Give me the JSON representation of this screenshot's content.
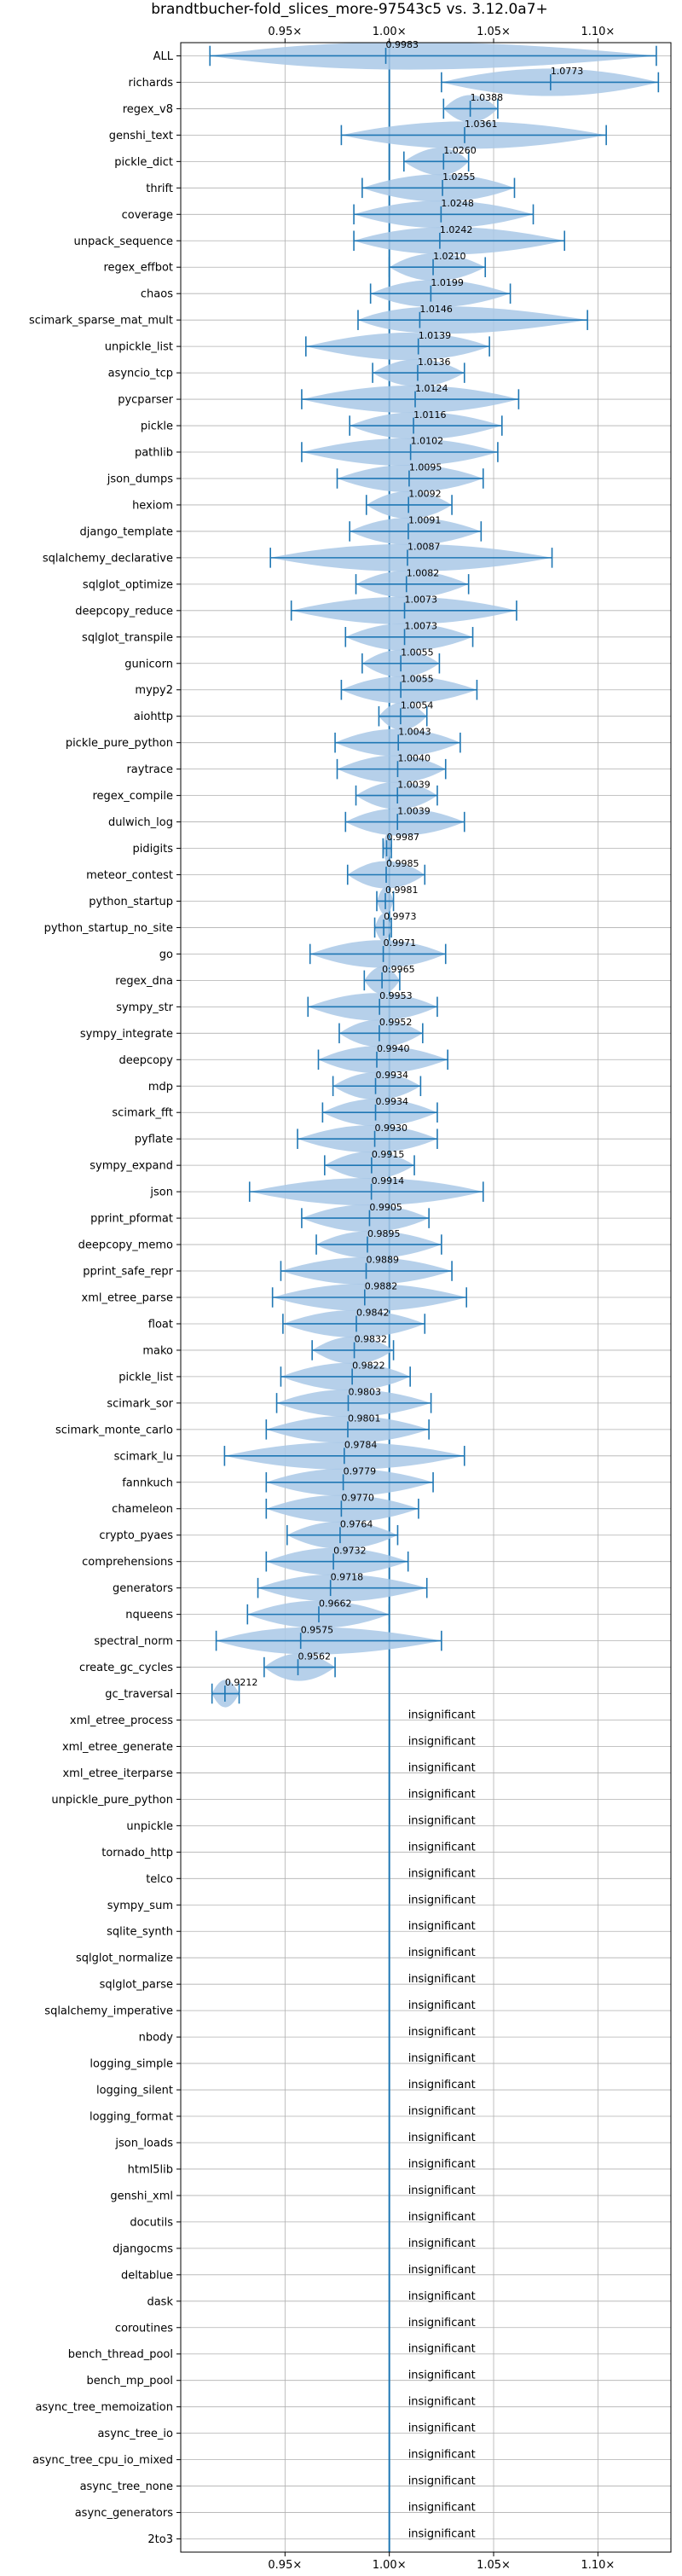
{
  "chart_data": {
    "type": "violin",
    "title": "brandtbucher-fold_slices_more-97543c5 vs. 3.12.0a7+",
    "x_ticks": [
      "0.95×",
      "1.00×",
      "1.05×",
      "1.10×"
    ],
    "x_tick_values": [
      0.95,
      1.0,
      1.05,
      1.1
    ],
    "xlim": [
      0.9,
      1.135
    ],
    "reference_line": 1.0,
    "grid": true,
    "colors": {
      "violin": "#a9c8e6",
      "line": "#1f77b4"
    },
    "insignificant_label": "insignificant",
    "benchmarks": [
      {
        "name": "ALL",
        "mean": 0.9983,
        "label": "0.9983",
        "min": 0.914,
        "max": 1.128
      },
      {
        "name": "richards",
        "mean": 1.0773,
        "label": "1.0773",
        "min": 1.025,
        "max": 1.129
      },
      {
        "name": "regex_v8",
        "mean": 1.0388,
        "label": "1.0388",
        "min": 1.026,
        "max": 1.052
      },
      {
        "name": "genshi_text",
        "mean": 1.0361,
        "label": "1.0361",
        "min": 0.977,
        "max": 1.104
      },
      {
        "name": "pickle_dict",
        "mean": 1.026,
        "label": "1.0260",
        "min": 1.007,
        "max": 1.038
      },
      {
        "name": "thrift",
        "mean": 1.0255,
        "label": "1.0255",
        "min": 0.987,
        "max": 1.06
      },
      {
        "name": "coverage",
        "mean": 1.0248,
        "label": "1.0248",
        "min": 0.983,
        "max": 1.069
      },
      {
        "name": "unpack_sequence",
        "mean": 1.0242,
        "label": "1.0242",
        "min": 0.983,
        "max": 1.084
      },
      {
        "name": "regex_effbot",
        "mean": 1.021,
        "label": "1.0210",
        "min": 1.0,
        "max": 1.046
      },
      {
        "name": "chaos",
        "mean": 1.0199,
        "label": "1.0199",
        "min": 0.991,
        "max": 1.058
      },
      {
        "name": "scimark_sparse_mat_mult",
        "mean": 1.0146,
        "label": "1.0146",
        "min": 0.985,
        "max": 1.095
      },
      {
        "name": "unpickle_list",
        "mean": 1.0139,
        "label": "1.0139",
        "min": 0.96,
        "max": 1.048
      },
      {
        "name": "asyncio_tcp",
        "mean": 1.0136,
        "label": "1.0136",
        "min": 0.992,
        "max": 1.036
      },
      {
        "name": "pycparser",
        "mean": 1.0124,
        "label": "1.0124",
        "min": 0.958,
        "max": 1.062
      },
      {
        "name": "pickle",
        "mean": 1.0116,
        "label": "1.0116",
        "min": 0.981,
        "max": 1.054
      },
      {
        "name": "pathlib",
        "mean": 1.0102,
        "label": "1.0102",
        "min": 0.958,
        "max": 1.052
      },
      {
        "name": "json_dumps",
        "mean": 1.0095,
        "label": "1.0095",
        "min": 0.975,
        "max": 1.045
      },
      {
        "name": "hexiom",
        "mean": 1.0092,
        "label": "1.0092",
        "min": 0.989,
        "max": 1.03
      },
      {
        "name": "django_template",
        "mean": 1.0091,
        "label": "1.0091",
        "min": 0.981,
        "max": 1.044
      },
      {
        "name": "sqlalchemy_declarative",
        "mean": 1.0087,
        "label": "1.0087",
        "min": 0.943,
        "max": 1.078
      },
      {
        "name": "sqlglot_optimize",
        "mean": 1.0082,
        "label": "1.0082",
        "min": 0.984,
        "max": 1.038
      },
      {
        "name": "deepcopy_reduce",
        "mean": 1.0073,
        "label": "1.0073",
        "min": 0.953,
        "max": 1.061
      },
      {
        "name": "sqlglot_transpile",
        "mean": 1.0073,
        "label": "1.0073",
        "min": 0.979,
        "max": 1.04
      },
      {
        "name": "gunicorn",
        "mean": 1.0055,
        "label": "1.0055",
        "min": 0.987,
        "max": 1.024
      },
      {
        "name": "mypy2",
        "mean": 1.0055,
        "label": "1.0055",
        "min": 0.977,
        "max": 1.042
      },
      {
        "name": "aiohttp",
        "mean": 1.0054,
        "label": "1.0054",
        "min": 0.995,
        "max": 1.018
      },
      {
        "name": "pickle_pure_python",
        "mean": 1.0043,
        "label": "1.0043",
        "min": 0.974,
        "max": 1.034
      },
      {
        "name": "raytrace",
        "mean": 1.004,
        "label": "1.0040",
        "min": 0.975,
        "max": 1.027
      },
      {
        "name": "regex_compile",
        "mean": 1.0039,
        "label": "1.0039",
        "min": 0.984,
        "max": 1.023
      },
      {
        "name": "dulwich_log",
        "mean": 1.0039,
        "label": "1.0039",
        "min": 0.979,
        "max": 1.036
      },
      {
        "name": "pidigits",
        "mean": 0.9987,
        "label": "0.9987",
        "min": 0.997,
        "max": 1.001
      },
      {
        "name": "meteor_contest",
        "mean": 0.9985,
        "label": "0.9985",
        "min": 0.98,
        "max": 1.017
      },
      {
        "name": "python_startup",
        "mean": 0.9981,
        "label": "0.9981",
        "min": 0.994,
        "max": 1.002
      },
      {
        "name": "python_startup_no_site",
        "mean": 0.9973,
        "label": "0.9973",
        "min": 0.993,
        "max": 1.001
      },
      {
        "name": "go",
        "mean": 0.9971,
        "label": "0.9971",
        "min": 0.962,
        "max": 1.027
      },
      {
        "name": "regex_dna",
        "mean": 0.9965,
        "label": "0.9965",
        "min": 0.988,
        "max": 1.005
      },
      {
        "name": "sympy_str",
        "mean": 0.9953,
        "label": "0.9953",
        "min": 0.961,
        "max": 1.023
      },
      {
        "name": "sympy_integrate",
        "mean": 0.9952,
        "label": "0.9952",
        "min": 0.976,
        "max": 1.016
      },
      {
        "name": "deepcopy",
        "mean": 0.994,
        "label": "0.9940",
        "min": 0.966,
        "max": 1.028
      },
      {
        "name": "mdp",
        "mean": 0.9934,
        "label": "0.9934",
        "min": 0.973,
        "max": 1.015
      },
      {
        "name": "scimark_fft",
        "mean": 0.9934,
        "label": "0.9934",
        "min": 0.968,
        "max": 1.023
      },
      {
        "name": "pyflate",
        "mean": 0.993,
        "label": "0.9930",
        "min": 0.956,
        "max": 1.023
      },
      {
        "name": "sympy_expand",
        "mean": 0.9915,
        "label": "0.9915",
        "min": 0.969,
        "max": 1.012
      },
      {
        "name": "json",
        "mean": 0.9914,
        "label": "0.9914",
        "min": 0.933,
        "max": 1.045
      },
      {
        "name": "pprint_pformat",
        "mean": 0.9905,
        "label": "0.9905",
        "min": 0.958,
        "max": 1.019
      },
      {
        "name": "deepcopy_memo",
        "mean": 0.9895,
        "label": "0.9895",
        "min": 0.965,
        "max": 1.025
      },
      {
        "name": "pprint_safe_repr",
        "mean": 0.9889,
        "label": "0.9889",
        "min": 0.948,
        "max": 1.03
      },
      {
        "name": "xml_etree_parse",
        "mean": 0.9882,
        "label": "0.9882",
        "min": 0.944,
        "max": 1.037
      },
      {
        "name": "float",
        "mean": 0.9842,
        "label": "0.9842",
        "min": 0.949,
        "max": 1.017
      },
      {
        "name": "mako",
        "mean": 0.9832,
        "label": "0.9832",
        "min": 0.963,
        "max": 1.002
      },
      {
        "name": "pickle_list",
        "mean": 0.9822,
        "label": "0.9822",
        "min": 0.948,
        "max": 1.01
      },
      {
        "name": "scimark_sor",
        "mean": 0.9803,
        "label": "0.9803",
        "min": 0.946,
        "max": 1.02
      },
      {
        "name": "scimark_monte_carlo",
        "mean": 0.9801,
        "label": "0.9801",
        "min": 0.941,
        "max": 1.019
      },
      {
        "name": "scimark_lu",
        "mean": 0.9784,
        "label": "0.9784",
        "min": 0.921,
        "max": 1.036
      },
      {
        "name": "fannkuch",
        "mean": 0.9779,
        "label": "0.9779",
        "min": 0.941,
        "max": 1.021
      },
      {
        "name": "chameleon",
        "mean": 0.977,
        "label": "0.9770",
        "min": 0.941,
        "max": 1.014
      },
      {
        "name": "crypto_pyaes",
        "mean": 0.9764,
        "label": "0.9764",
        "min": 0.951,
        "max": 1.004
      },
      {
        "name": "comprehensions",
        "mean": 0.9732,
        "label": "0.9732",
        "min": 0.941,
        "max": 1.009
      },
      {
        "name": "generators",
        "mean": 0.9718,
        "label": "0.9718",
        "min": 0.937,
        "max": 1.018
      },
      {
        "name": "nqueens",
        "mean": 0.9662,
        "label": "0.9662",
        "min": 0.932,
        "max": 1.0
      },
      {
        "name": "spectral_norm",
        "mean": 0.9575,
        "label": "0.9575",
        "min": 0.917,
        "max": 1.025
      },
      {
        "name": "create_gc_cycles",
        "mean": 0.9562,
        "label": "0.9562",
        "min": 0.94,
        "max": 0.974
      },
      {
        "name": "gc_traversal",
        "mean": 0.9212,
        "label": "0.9212",
        "min": 0.915,
        "max": 0.928
      },
      {
        "name": "xml_etree_process",
        "insignificant": true
      },
      {
        "name": "xml_etree_generate",
        "insignificant": true
      },
      {
        "name": "xml_etree_iterparse",
        "insignificant": true
      },
      {
        "name": "unpickle_pure_python",
        "insignificant": true
      },
      {
        "name": "unpickle",
        "insignificant": true
      },
      {
        "name": "tornado_http",
        "insignificant": true
      },
      {
        "name": "telco",
        "insignificant": true
      },
      {
        "name": "sympy_sum",
        "insignificant": true
      },
      {
        "name": "sqlite_synth",
        "insignificant": true
      },
      {
        "name": "sqlglot_normalize",
        "insignificant": true
      },
      {
        "name": "sqlglot_parse",
        "insignificant": true
      },
      {
        "name": "sqlalchemy_imperative",
        "insignificant": true
      },
      {
        "name": "nbody",
        "insignificant": true
      },
      {
        "name": "logging_simple",
        "insignificant": true
      },
      {
        "name": "logging_silent",
        "insignificant": true
      },
      {
        "name": "logging_format",
        "insignificant": true
      },
      {
        "name": "json_loads",
        "insignificant": true
      },
      {
        "name": "html5lib",
        "insignificant": true
      },
      {
        "name": "genshi_xml",
        "insignificant": true
      },
      {
        "name": "docutils",
        "insignificant": true
      },
      {
        "name": "djangocms",
        "insignificant": true
      },
      {
        "name": "deltablue",
        "insignificant": true
      },
      {
        "name": "dask",
        "insignificant": true
      },
      {
        "name": "coroutines",
        "insignificant": true
      },
      {
        "name": "bench_thread_pool",
        "insignificant": true
      },
      {
        "name": "bench_mp_pool",
        "insignificant": true
      },
      {
        "name": "async_tree_memoization",
        "insignificant": true
      },
      {
        "name": "async_tree_io",
        "insignificant": true
      },
      {
        "name": "async_tree_cpu_io_mixed",
        "insignificant": true
      },
      {
        "name": "async_tree_none",
        "insignificant": true
      },
      {
        "name": "async_generators",
        "insignificant": true
      },
      {
        "name": "2to3",
        "insignificant": true
      }
    ]
  }
}
